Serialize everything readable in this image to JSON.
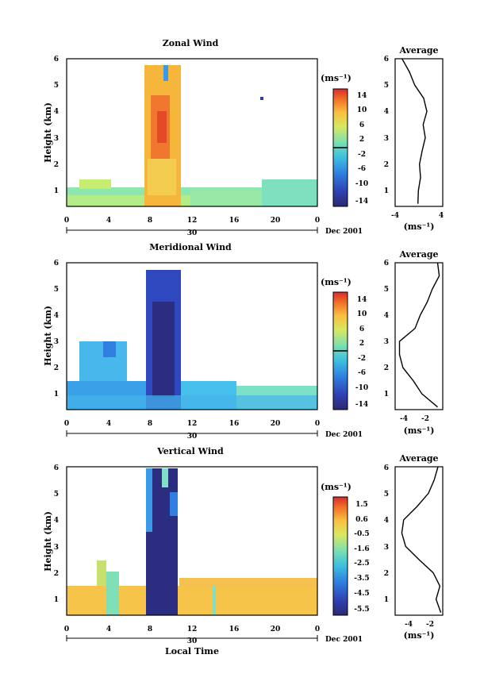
{
  "figure": {
    "xlabel": "Local Time",
    "date_label": "Dec 2001",
    "day_label": "30"
  },
  "chart_data": [
    {
      "type": "heatmap",
      "title": "Zonal Wind",
      "ylabel": "Height (km)",
      "x_ticks": [
        "0",
        "4",
        "8",
        "12",
        "16",
        "20",
        "0"
      ],
      "y_ticks": [
        "1",
        "2",
        "3",
        "4",
        "5",
        "6"
      ],
      "xlim": [
        0,
        24
      ],
      "ylim": [
        0.4,
        6
      ],
      "colorbar": {
        "unit": "(ms⁻¹)",
        "ticks": [
          "14",
          "10",
          "6",
          "2",
          "-2",
          "-6",
          "-10",
          "-14"
        ],
        "range": [
          -16,
          16
        ]
      },
      "average_profile": {
        "title": "Average",
        "xlabel": "(ms⁻¹)",
        "x_ticks": [
          "-4",
          "4"
        ],
        "xlim": [
          -4.5,
          4.5
        ],
        "heights": [
          0.5,
          1.0,
          1.5,
          2.0,
          2.5,
          3.0,
          3.5,
          4.0,
          4.5,
          5.0,
          5.5,
          6.0
        ],
        "values": [
          -0.2,
          -0.1,
          0.3,
          0.1,
          0.6,
          1.2,
          0.8,
          1.5,
          0.9,
          -0.8,
          -1.8,
          -3.2
        ]
      }
    },
    {
      "type": "heatmap",
      "title": "Meridional Wind",
      "ylabel": "Height (km)",
      "x_ticks": [
        "0",
        "4",
        "8",
        "12",
        "16",
        "20",
        "0"
      ],
      "y_ticks": [
        "1",
        "2",
        "3",
        "4",
        "5",
        "6"
      ],
      "xlim": [
        0,
        24
      ],
      "ylim": [
        0.4,
        6
      ],
      "colorbar": {
        "unit": "(ms⁻¹)",
        "ticks": [
          "14",
          "10",
          "6",
          "2",
          "-2",
          "-6",
          "-10",
          "-14"
        ],
        "range": [
          -16,
          16
        ]
      },
      "average_profile": {
        "title": "Average",
        "xlabel": "(ms⁻¹)",
        "x_ticks": [
          "-4",
          "-2"
        ],
        "xlim": [
          -5.5,
          0
        ],
        "heights": [
          0.5,
          1.0,
          1.5,
          2.0,
          2.5,
          3.0,
          3.5,
          4.0,
          4.5,
          5.0,
          5.5,
          6.0
        ],
        "values": [
          -0.6,
          -2.4,
          -3.4,
          -4.6,
          -5.0,
          -5.0,
          -3.2,
          -2.6,
          -1.8,
          -1.2,
          -0.4,
          -0.6
        ]
      }
    },
    {
      "type": "heatmap",
      "title": "Vertical Wind",
      "ylabel": "Height (km)",
      "x_ticks": [
        "0",
        "4",
        "8",
        "12",
        "16",
        "20",
        "0"
      ],
      "y_ticks": [
        "1",
        "2",
        "3",
        "4",
        "5",
        "6"
      ],
      "xlim": [
        0,
        24
      ],
      "ylim": [
        0.4,
        6
      ],
      "colorbar": {
        "unit": "(ms⁻¹)",
        "ticks": [
          "1.5",
          "0.6",
          "-0.5",
          "-1.6",
          "-2.5",
          "-3.5",
          "-4.5",
          "-5.5"
        ],
        "range": [
          -6,
          2
        ]
      },
      "average_profile": {
        "title": "Average",
        "xlabel": "(ms⁻¹)",
        "x_ticks": [
          "-4",
          "-2"
        ],
        "xlim": [
          -5.5,
          -0.5
        ],
        "heights": [
          0.5,
          1.0,
          1.5,
          2.0,
          2.5,
          3.0,
          3.5,
          4.0,
          4.5,
          5.0,
          5.5,
          6.0
        ],
        "values": [
          -0.7,
          -1.2,
          -0.8,
          -1.5,
          -3.0,
          -4.4,
          -4.8,
          -4.6,
          -3.2,
          -2.0,
          -1.4,
          -1.0
        ]
      }
    }
  ]
}
